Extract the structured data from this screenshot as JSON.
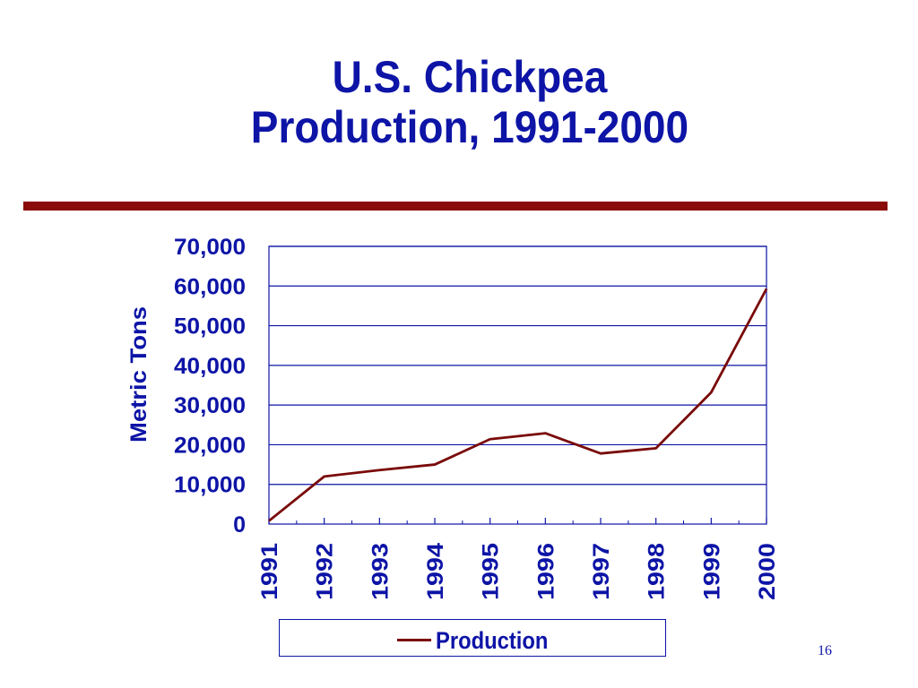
{
  "slide": {
    "title_line1": "U.S. Chickpea",
    "title_line2": "Production, 1991-2000",
    "page_number": "16"
  },
  "colors": {
    "title": "#0d14a6",
    "divider": "#8b0a0a",
    "series_line": "#7a0a0a",
    "axis": "#0d14a6"
  },
  "chart_data": {
    "type": "line",
    "title": "",
    "xlabel": "",
    "ylabel": "Metric Tons",
    "categories": [
      "1991",
      "1992",
      "1993",
      "1994",
      "1995",
      "1996",
      "1997",
      "1998",
      "1999",
      "2000"
    ],
    "ylim": [
      0,
      70000
    ],
    "ytick_labels": [
      "0",
      "10,000",
      "20,000",
      "30,000",
      "40,000",
      "50,000",
      "60,000",
      "70,000"
    ],
    "ytick_values": [
      0,
      10000,
      20000,
      30000,
      40000,
      50000,
      60000,
      70000
    ],
    "grid": true,
    "legend_position": "bottom",
    "series": [
      {
        "name": "Production",
        "values": [
          800,
          12000,
          13600,
          15000,
          21400,
          22900,
          17800,
          19100,
          33200,
          59300
        ]
      }
    ]
  }
}
